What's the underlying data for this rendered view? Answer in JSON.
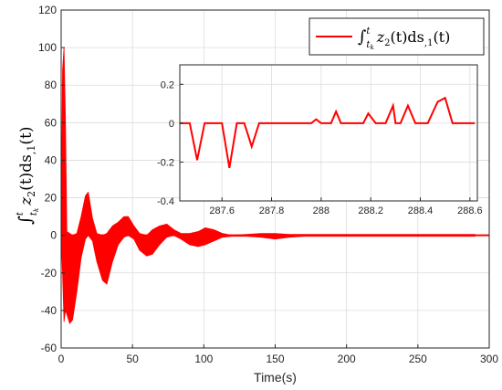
{
  "chart_data": [
    {
      "type": "line",
      "title": "",
      "xlabel": "Time(s)",
      "ylabel": "∫tkt z2(t)ds,1(t)",
      "ylabel_parts": {
        "integral": "∫",
        "upper": "t",
        "lower": "t",
        "lower_sub": "k",
        "body": "z",
        "body_sub": "2",
        "rest": "(t)ds",
        "rest_sub": ",1",
        "tail": "(t)"
      },
      "xlim": [
        0,
        300
      ],
      "ylim": [
        -60,
        120
      ],
      "xticks": [
        0,
        50,
        100,
        150,
        200,
        250,
        300
      ],
      "yticks": [
        -60,
        -40,
        -20,
        0,
        20,
        40,
        60,
        80,
        100,
        120
      ],
      "grid": true,
      "legend_position": "top-right",
      "series": [
        {
          "name": "∫tkt z2(t)ds,1(t)",
          "color": "#ff0000",
          "envelope": {
            "t": [
              0,
              1,
              2,
              3,
              4,
              6,
              8,
              11,
              14,
              17,
              19,
              22,
              25,
              29,
              32,
              36,
              40,
              44,
              47,
              51,
              55,
              60,
              64,
              69,
              74,
              79,
              84,
              90,
              96,
              101,
              107,
              113,
              120,
              130,
              140,
              150,
              160,
              170,
              180,
              190,
              200,
              210,
              220,
              230,
              240,
              250,
              260,
              270,
              280,
              290
            ],
            "upper": [
              0,
              88,
              100,
              62,
              2,
              1,
              0,
              1,
              10,
              21,
              23,
              9,
              1,
              0,
              1,
              5,
              7,
              10,
              10,
              5,
              1,
              0,
              3,
              5,
              6,
              3,
              1,
              1,
              2,
              4,
              3,
              1,
              0,
              0.5,
              1,
              1,
              0.5,
              0.5,
              0.5,
              0.5,
              0.5,
              0.5,
              0.5,
              0.5,
              0.5,
              0.5,
              0.5,
              0.5,
              0.5,
              0.5
            ],
            "lower": [
              0,
              -20,
              -46,
              -40,
              -42,
              -47,
              -45,
              -30,
              -12,
              -2,
              0,
              -3,
              -14,
              -24,
              -26,
              -14,
              -5,
              -1,
              0,
              -2,
              -8,
              -11,
              -10,
              -5,
              -1,
              0,
              -2,
              -5,
              -6,
              -5,
              -3,
              -1,
              -0.5,
              -0.5,
              -1,
              -2,
              -1,
              -0.5,
              -0.5,
              -0.5,
              -0.5,
              -0.5,
              -0.5,
              -0.5,
              -0.5,
              -0.5,
              -0.5,
              -0.5,
              -0.5,
              -0.5
            ]
          }
        }
      ]
    },
    {
      "type": "line",
      "title": "",
      "xlabel": "",
      "ylabel": "",
      "xlim": [
        287.43,
        288.63
      ],
      "ylim": [
        -0.4,
        0.3
      ],
      "xticks": [
        287.6,
        287.8,
        288,
        288.2,
        288.4,
        288.6
      ],
      "xtick_labels": [
        "287.6",
        "287.8",
        "288",
        "288.2",
        "288.4",
        "288.6"
      ],
      "yticks": [
        -0.4,
        -0.2,
        0,
        0.2
      ],
      "ytick_labels": [
        "-0.4",
        "-0.2",
        "0",
        "0.2"
      ],
      "grid": true,
      "series": [
        {
          "name": "",
          "color": "#ff0000",
          "x": [
            287.43,
            287.47,
            287.5,
            287.53,
            287.6,
            287.63,
            287.66,
            287.69,
            287.72,
            287.75,
            287.96,
            287.98,
            288.0,
            288.04,
            288.06,
            288.08,
            288.17,
            288.19,
            288.22,
            288.26,
            288.29,
            288.3,
            288.32,
            288.35,
            288.38,
            288.43,
            288.47,
            288.5,
            288.53,
            288.62
          ],
          "y": [
            0,
            0,
            -0.19,
            0,
            0,
            -0.23,
            0,
            0,
            -0.12,
            0,
            0,
            0.02,
            0,
            0,
            0.06,
            0,
            0,
            0.05,
            0,
            0,
            0.09,
            0,
            0,
            0.09,
            0,
            0,
            0.11,
            0.13,
            0,
            0
          ]
        }
      ]
    }
  ]
}
